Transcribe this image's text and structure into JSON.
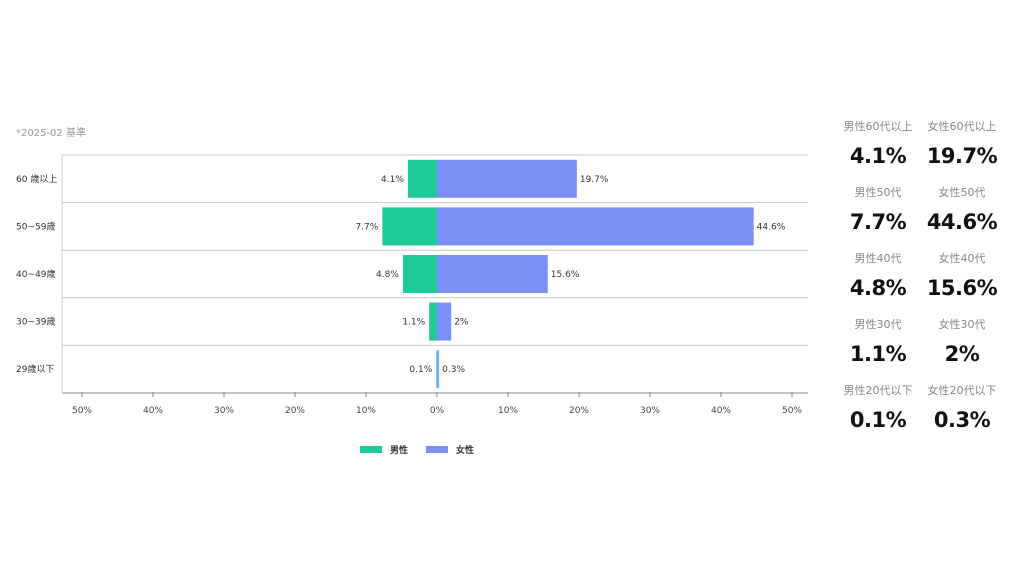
{
  "note": "*2025-02 基準",
  "colors": {
    "male": "#1ec99a",
    "female": "#7b8ff8",
    "female_small": "#6eb3ec"
  },
  "legend": {
    "male": "男性",
    "female": "女性"
  },
  "chart_data": {
    "type": "bar",
    "orientation": "horizontal-butterfly",
    "categories": [
      "60 歳以上",
      "50~59歳",
      "40~49歳",
      "30~39歳",
      "29歳以下"
    ],
    "series": [
      {
        "name": "男性",
        "values": [
          4.1,
          7.7,
          4.8,
          1.1,
          0.1
        ]
      },
      {
        "name": "女性",
        "values": [
          19.7,
          44.6,
          15.6,
          2,
          0.3
        ]
      }
    ],
    "bar_labels": {
      "male": [
        "4.1%",
        "7.7%",
        "4.8%",
        "1.1%",
        "0.1%"
      ],
      "female": [
        "19.7%",
        "44.6%",
        "15.6%",
        "2%",
        "0.3%"
      ]
    },
    "x_ticks": [
      "50%",
      "40%",
      "30%",
      "20%",
      "10%",
      "0%",
      "10%",
      "20%",
      "30%",
      "40%",
      "50%"
    ],
    "xlim": [
      -50,
      50
    ],
    "grid": false,
    "legend_position": "bottom"
  },
  "stats": [
    {
      "male_label": "男性60代以上",
      "male_value": "4.1%",
      "female_label": "女性60代以上",
      "female_value": "19.7%"
    },
    {
      "male_label": "男性50代",
      "male_value": "7.7%",
      "female_label": "女性50代",
      "female_value": "44.6%"
    },
    {
      "male_label": "男性40代",
      "male_value": "4.8%",
      "female_label": "女性40代",
      "female_value": "15.6%"
    },
    {
      "male_label": "男性30代",
      "male_value": "1.1%",
      "female_label": "女性30代",
      "female_value": "2%"
    },
    {
      "male_label": "男性20代以下",
      "male_value": "0.1%",
      "female_label": "女性20代以下",
      "female_value": "0.3%"
    }
  ]
}
